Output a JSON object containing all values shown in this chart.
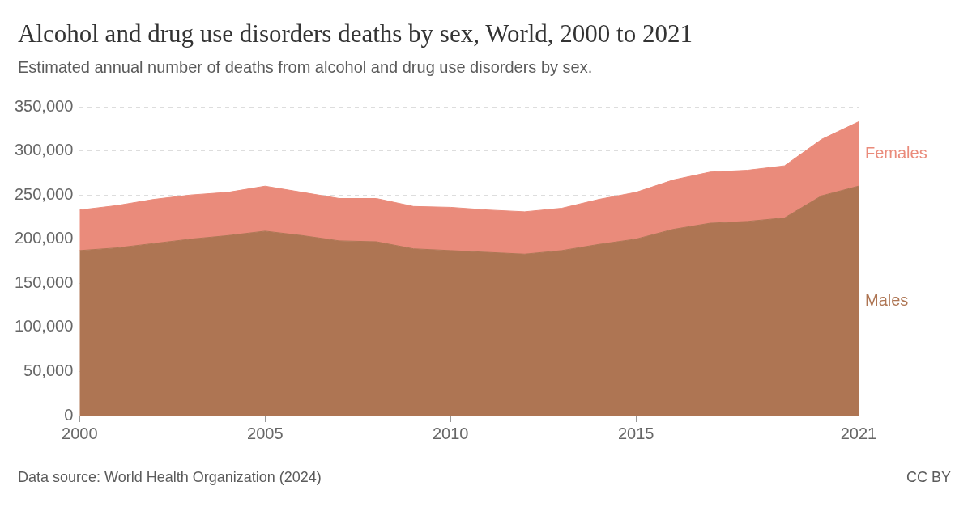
{
  "chart_data": {
    "type": "area",
    "title": "Alcohol and drug use disorders deaths by sex, World, 2000 to 2021",
    "subtitle": "Estimated annual number of deaths from alcohol and drug use disorders by sex.",
    "x": [
      2000,
      2001,
      2002,
      2003,
      2004,
      2005,
      2006,
      2007,
      2008,
      2009,
      2010,
      2011,
      2012,
      2013,
      2014,
      2015,
      2016,
      2017,
      2018,
      2019,
      2020,
      2021
    ],
    "stacked": true,
    "series": [
      {
        "name": "Males",
        "color": "#ae7553",
        "values": [
          187000,
          190000,
          195000,
          200000,
          204000,
          209000,
          204000,
          198000,
          197000,
          189000,
          187000,
          185000,
          183000,
          187000,
          194000,
          200000,
          211000,
          218000,
          220000,
          224000,
          249000,
          260000
        ]
      },
      {
        "name": "Females",
        "color": "#ea8b7b",
        "values": [
          46000,
          48000,
          50000,
          50000,
          49000,
          51000,
          49000,
          48000,
          49000,
          48000,
          49000,
          48000,
          48000,
          48000,
          51000,
          53000,
          56000,
          58000,
          58000,
          59000,
          64000,
          73000
        ]
      }
    ],
    "xlim": [
      2000,
      2021
    ],
    "xticks": [
      2000,
      2005,
      2010,
      2015,
      2021
    ],
    "ylim": [
      0,
      350000
    ],
    "yticks": [
      0,
      {
        "value": 50000,
        "label": "50,000"
      },
      {
        "value": 100000,
        "label": "100,000"
      },
      {
        "value": 150000,
        "label": "150,000"
      },
      {
        "value": 200000,
        "label": "200,000"
      },
      {
        "value": 250000,
        "label": "250,000"
      },
      {
        "value": 300000,
        "label": "300,000"
      },
      {
        "value": 350000,
        "label": "350,000"
      }
    ],
    "grid": "y",
    "legend": false,
    "annotations": [
      "Data source: World Health Organization (2024)",
      "CC BY"
    ]
  }
}
